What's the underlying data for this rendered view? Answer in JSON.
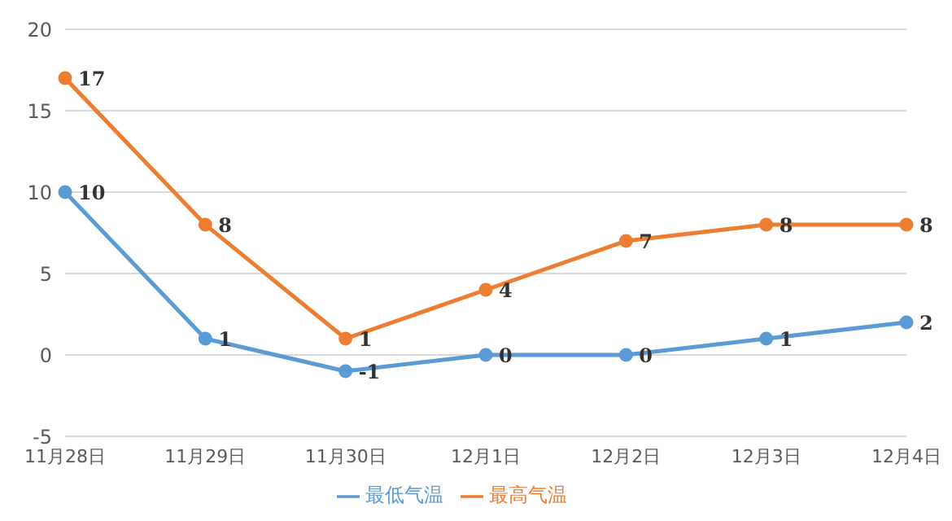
{
  "chart_data": {
    "type": "line",
    "categories": [
      "11月28日",
      "11月29日",
      "11月30日",
      "12月1日",
      "12月2日",
      "12月3日",
      "12月4日"
    ],
    "series": [
      {
        "name": "最低气温",
        "color": "#5b9bd5",
        "values": [
          10,
          1,
          -1,
          0,
          0,
          1,
          2
        ]
      },
      {
        "name": "最高气温",
        "color": "#ed7d31",
        "values": [
          17,
          8,
          1,
          4,
          7,
          8,
          8
        ]
      }
    ],
    "ylim": [
      -5,
      20
    ],
    "yticks": [
      -5,
      0,
      5,
      10,
      15,
      20
    ],
    "grid": "y",
    "legend": "bottom",
    "marker": "circle",
    "data_labels": true
  }
}
